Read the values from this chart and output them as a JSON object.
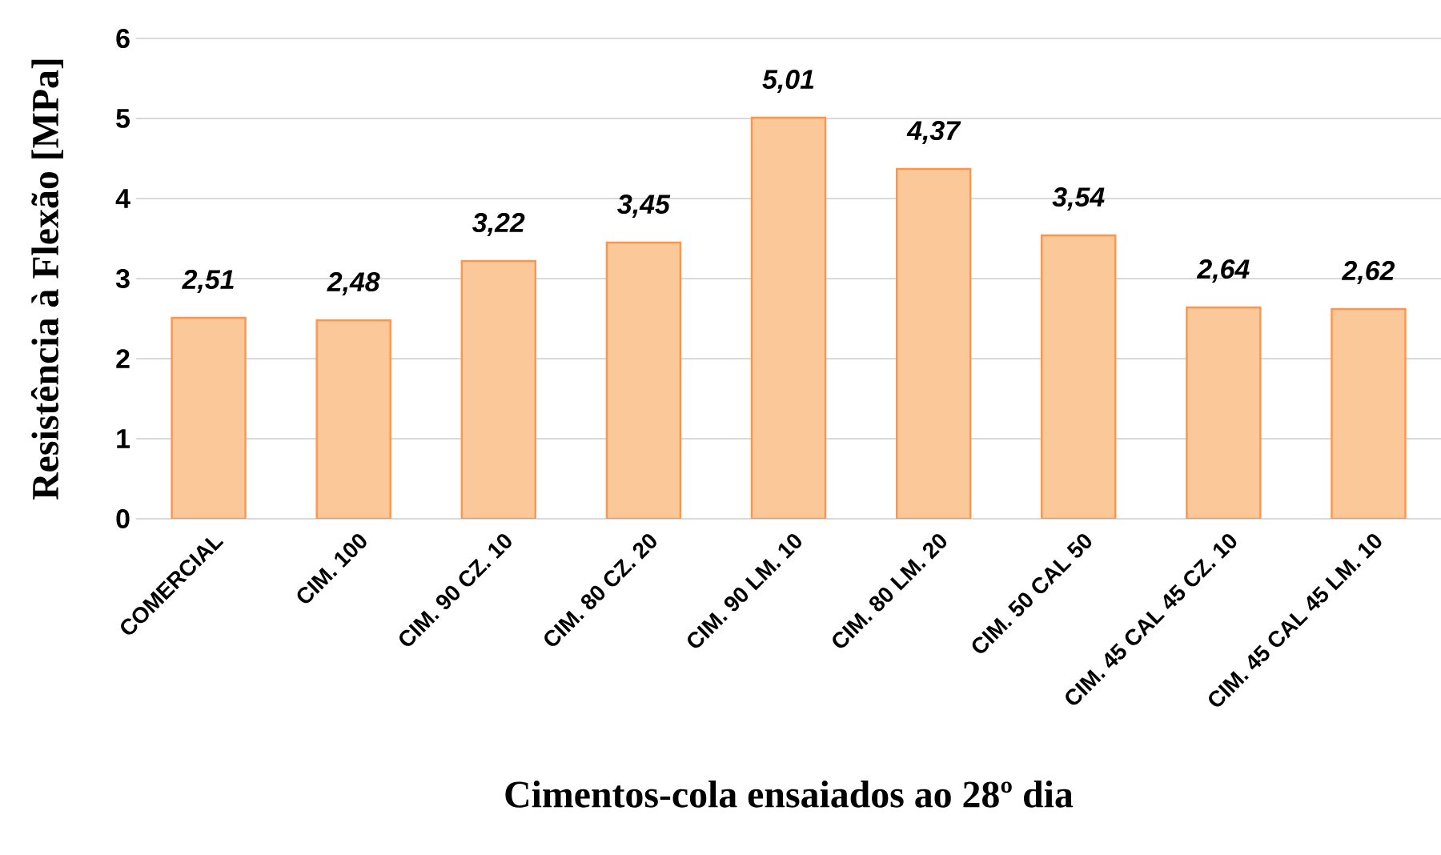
{
  "chart_data": {
    "type": "bar",
    "xlabel": "Cimentos-cola ensaiados ao 28º dia",
    "ylabel": "Resistência à Flexão [MPa]",
    "categories": [
      "COMERCIAL",
      "CIM. 100",
      "CIM. 90 CZ. 10",
      "CIM. 80 CZ. 20",
      "CIM. 90 LM. 10",
      "CIM. 80 LM. 20",
      "CIM. 50 CAL 50",
      "CIM. 45 CAL 45 CZ. 10",
      "CIM. 45 CAL 45 LM. 10"
    ],
    "values": [
      2.51,
      2.48,
      3.22,
      3.45,
      5.01,
      4.37,
      3.54,
      2.64,
      2.62
    ],
    "value_labels": [
      "2,51",
      "2,48",
      "3,22",
      "3,45",
      "5,01",
      "4,37",
      "3,54",
      "2,64",
      "2,62"
    ],
    "color": "#fbc89a",
    "ylim": [
      0,
      6
    ],
    "yticks": [
      0,
      1,
      2,
      3,
      4,
      5,
      6
    ],
    "grid": "y"
  }
}
